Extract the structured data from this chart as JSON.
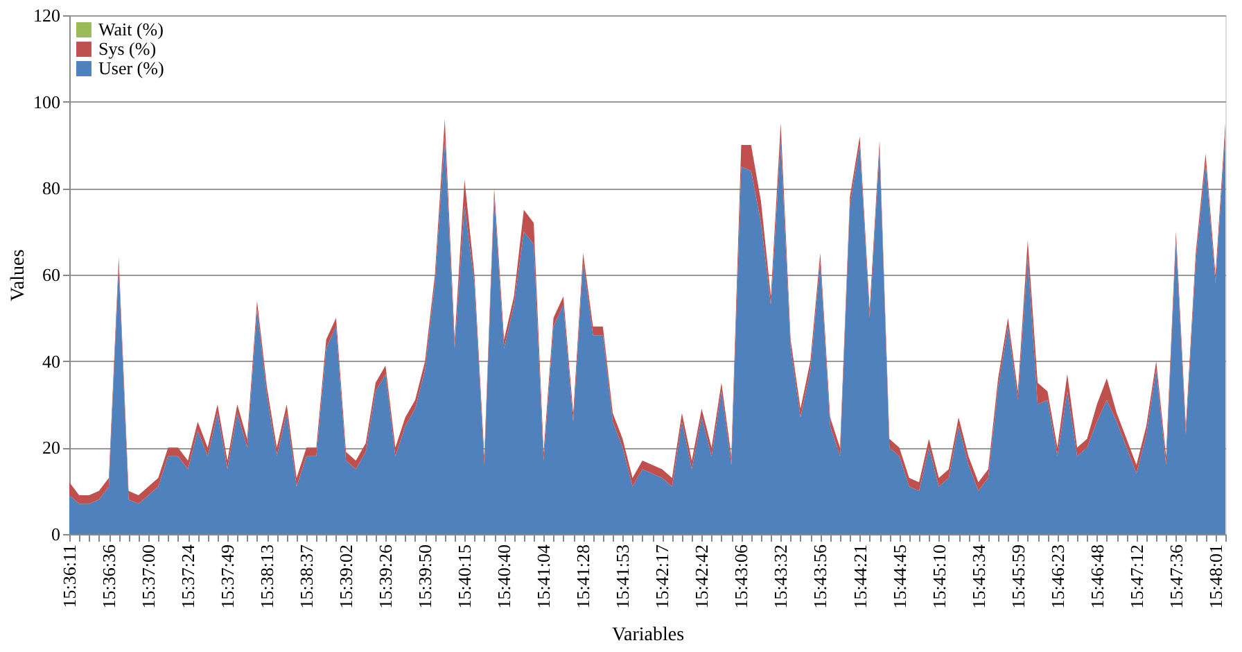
{
  "chart_data": {
    "type": "area",
    "stacked": true,
    "xlabel": "Variables",
    "ylabel": "Values",
    "categories": [
      "15:36:11",
      null,
      null,
      null,
      "15:36:36",
      null,
      null,
      null,
      "15:37:00",
      null,
      null,
      null,
      "15:37:24",
      null,
      null,
      null,
      "15:37:49",
      null,
      null,
      null,
      "15:38:13",
      null,
      null,
      null,
      "15:38:37",
      null,
      null,
      null,
      "15:39:02",
      null,
      null,
      null,
      "15:39:26",
      null,
      null,
      null,
      "15:39:50",
      null,
      null,
      null,
      "15:40:15",
      null,
      null,
      null,
      "15:40:40",
      null,
      null,
      null,
      "15:41:04",
      null,
      null,
      null,
      "15:41:28",
      null,
      null,
      null,
      "15:41:53",
      null,
      null,
      null,
      "15:42:17",
      null,
      null,
      null,
      "15:42:42",
      null,
      null,
      null,
      "15:43:06",
      null,
      null,
      null,
      "15:43:32",
      null,
      null,
      null,
      "15:43:56",
      null,
      null,
      null,
      "15:44:21",
      null,
      null,
      null,
      "15:44:45",
      null,
      null,
      null,
      "15:45:10",
      null,
      null,
      null,
      "15:45:34",
      null,
      null,
      null,
      "15:45:59",
      null,
      null,
      null,
      "15:46:23",
      null,
      null,
      null,
      "15:46:48",
      null,
      null,
      null,
      "15:47:12",
      null,
      null,
      null,
      "15:47:36",
      null,
      null,
      null,
      "15:48:01",
      null
    ],
    "series": [
      {
        "name": "User (%)",
        "color": "#4f81bd",
        "values": [
          9,
          7,
          7,
          8,
          11,
          62,
          8,
          7,
          9,
          11,
          18,
          18,
          15,
          24,
          18,
          28,
          15,
          28,
          20,
          52,
          32,
          18,
          28,
          11,
          18,
          18,
          43,
          48,
          17,
          15,
          19,
          33,
          37,
          18,
          25,
          29,
          38,
          58,
          92,
          43,
          76,
          58,
          16,
          78,
          43,
          53,
          70,
          67,
          17,
          48,
          53,
          26,
          63,
          46,
          46,
          26,
          20,
          11,
          15,
          14,
          13,
          11,
          26,
          15,
          27,
          18,
          33,
          16,
          85,
          84,
          72,
          53,
          91,
          43,
          27,
          38,
          63,
          25,
          18,
          76,
          90,
          50,
          89,
          20,
          18,
          11,
          10,
          20,
          11,
          13,
          25,
          16,
          10,
          13,
          34,
          48,
          31,
          64,
          30,
          31,
          18,
          33,
          18,
          20,
          26,
          31,
          26,
          20,
          14,
          23,
          38,
          16,
          68,
          23,
          63,
          86,
          58,
          93
        ]
      },
      {
        "name": "Sys (%)",
        "color": "#c0504d",
        "values": [
          3,
          2,
          2,
          2,
          2,
          2,
          2,
          2,
          2,
          2,
          2,
          2,
          2,
          2,
          2,
          2,
          2,
          2,
          2,
          2,
          2,
          2,
          2,
          2,
          2,
          2,
          2,
          2,
          2,
          2,
          2,
          2,
          2,
          2,
          2,
          2,
          2,
          2,
          4,
          2,
          6,
          2,
          2,
          2,
          2,
          2,
          5,
          5,
          2,
          2,
          2,
          2,
          2,
          2,
          2,
          2,
          2,
          2,
          2,
          2,
          2,
          2,
          2,
          2,
          2,
          2,
          2,
          2,
          5,
          6,
          5,
          2,
          4,
          2,
          2,
          2,
          2,
          2,
          2,
          2,
          2,
          2,
          2,
          2,
          2,
          2,
          2,
          2,
          2,
          2,
          2,
          2,
          2,
          2,
          2,
          2,
          2,
          4,
          5,
          2,
          2,
          4,
          2,
          2,
          4,
          5,
          2,
          2,
          2,
          2,
          2,
          2,
          2,
          2,
          2,
          2,
          2,
          2
        ]
      },
      {
        "name": "Wait (%)",
        "color": "#9bbb59",
        "values": [
          null,
          null,
          null,
          null,
          null,
          null,
          null,
          null,
          null,
          null,
          null,
          null,
          null,
          null,
          null,
          null,
          null,
          null,
          null,
          null,
          null,
          null,
          null,
          null,
          null,
          null,
          null,
          null,
          null,
          null,
          null,
          null,
          null,
          null,
          null,
          null,
          null,
          null,
          null,
          null,
          null,
          null,
          null,
          null,
          null,
          null,
          null,
          null,
          null,
          null,
          null,
          null,
          null,
          null,
          null,
          null,
          null,
          null,
          null,
          null,
          null,
          null,
          null,
          null,
          null,
          null,
          null,
          null,
          null,
          null,
          null,
          null,
          null,
          null,
          null,
          null,
          null,
          null,
          null,
          null,
          null,
          null,
          null,
          null,
          null,
          null,
          null,
          null,
          null,
          null,
          null,
          null,
          null,
          null,
          null,
          null,
          null,
          null,
          null,
          null,
          null,
          null,
          null,
          null,
          null,
          null,
          null,
          null,
          null,
          null,
          null,
          null,
          null,
          null,
          null,
          null,
          null,
          null
        ]
      }
    ],
    "ylim": [
      0,
      120
    ],
    "yticks": [
      0,
      20,
      40,
      60,
      80,
      100,
      120
    ],
    "grid": "y",
    "legend": "top left"
  }
}
